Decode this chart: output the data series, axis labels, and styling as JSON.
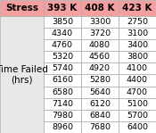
{
  "col_headers": [
    "Stress",
    "393 K",
    "408 K",
    "423 K"
  ],
  "row_header": "Time Failed\n(hrs)",
  "data": [
    [
      3850,
      3300,
      2750
    ],
    [
      4340,
      3720,
      3100
    ],
    [
      4760,
      4080,
      3400
    ],
    [
      5320,
      4560,
      3800
    ],
    [
      5740,
      4920,
      4100
    ],
    [
      6160,
      5280,
      4400
    ],
    [
      6580,
      5640,
      4700
    ],
    [
      7140,
      6120,
      5100
    ],
    [
      7980,
      6840,
      5700
    ],
    [
      8960,
      7680,
      6400
    ]
  ],
  "header_bg": "#F4A0A0",
  "row_header_bg": "#E8E8E8",
  "data_bg": "#FFFFFF",
  "header_text_color": "#000000",
  "data_text_color": "#000000",
  "border_color": "#AAAAAA",
  "title_fontsize": 7.5,
  "data_fontsize": 6.8
}
